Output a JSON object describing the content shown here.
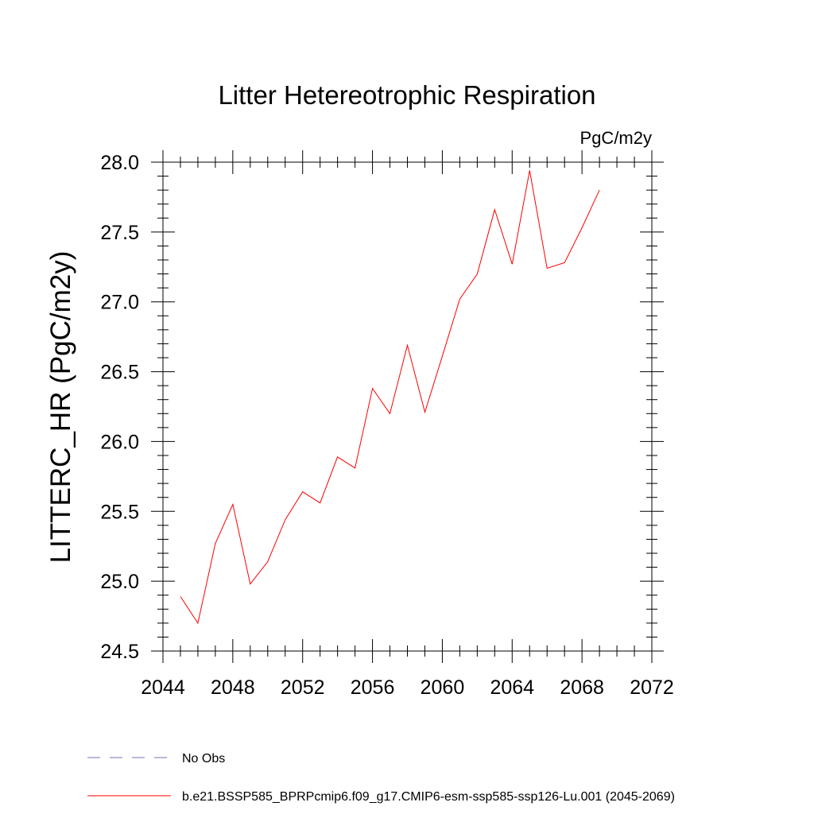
{
  "chart_data": {
    "type": "line",
    "title": "Litter Hetereotrophic Respiration",
    "units_label": "PgC/m2y",
    "ylabel": "LITTERC_HR  (PgC/m2y)",
    "xlabel": "",
    "xlim": [
      2044,
      2072
    ],
    "ylim": [
      24.5,
      28.0
    ],
    "x_ticks": [
      2044,
      2048,
      2052,
      2056,
      2060,
      2064,
      2068,
      2072
    ],
    "x_tick_labels": [
      "2044",
      "2048",
      "2052",
      "2056",
      "2060",
      "2064",
      "2068",
      "2072"
    ],
    "y_ticks": [
      24.5,
      25.0,
      25.5,
      26.0,
      26.5,
      27.0,
      27.5,
      28.0
    ],
    "y_tick_labels": [
      "24.5",
      "25.0",
      "25.5",
      "26.0",
      "26.5",
      "27.0",
      "27.5",
      "28.0"
    ],
    "series": [
      {
        "name": "b.e21.BSSP585_BPRPcmip6.f09_g17.CMIP6-esm-ssp585-ssp126-Lu.001 (2045-2069)",
        "color": "#ff0000",
        "dash": "solid",
        "x": [
          2045,
          2046,
          2047,
          2048,
          2049,
          2050,
          2051,
          2052,
          2053,
          2054,
          2055,
          2056,
          2057,
          2058,
          2059,
          2060,
          2061,
          2062,
          2063,
          2064,
          2065,
          2066,
          2067,
          2068,
          2069
        ],
        "y": [
          24.89,
          24.7,
          25.27,
          25.55,
          24.98,
          25.14,
          25.44,
          25.64,
          25.56,
          25.89,
          25.81,
          26.38,
          26.2,
          26.69,
          26.21,
          26.61,
          27.02,
          27.2,
          27.66,
          27.27,
          27.94,
          27.24,
          27.28,
          27.53,
          27.8
        ]
      }
    ],
    "legend": {
      "placement": "bottom-left",
      "entries": [
        {
          "label": "No Obs",
          "color": "#7b6fb0",
          "dash": "dashed"
        },
        {
          "label": "b.e21.BSSP585_BPRPcmip6.f09_g17.CMIP6-esm-ssp585-ssp126-Lu.001 (2045-2069)",
          "color": "#ff0000",
          "dash": "solid"
        }
      ]
    },
    "grid": false
  }
}
